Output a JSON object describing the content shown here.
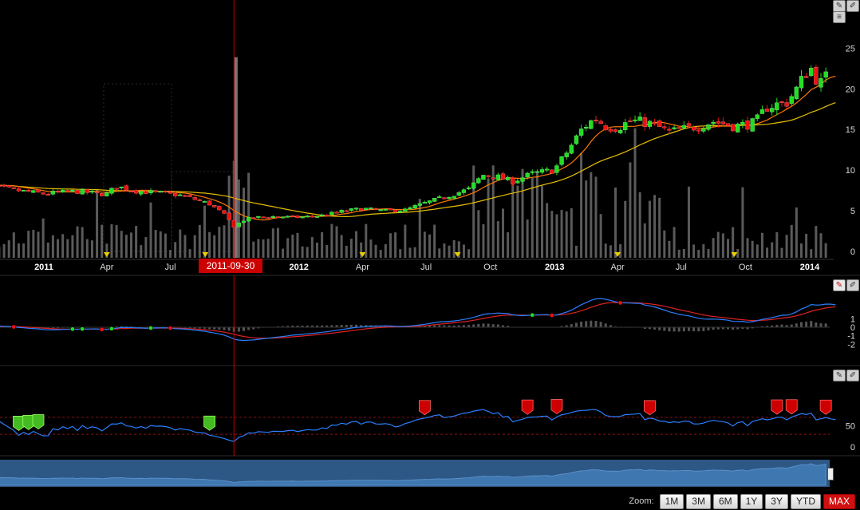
{
  "cursor": {
    "label": "2011-09-30"
  },
  "zoom": {
    "label": "Zoom:",
    "buttons": [
      "1M",
      "3M",
      "6M",
      "1Y",
      "3Y",
      "YTD",
      "MAX"
    ],
    "active": "MAX"
  },
  "colors": {
    "up": "#22dd22",
    "down": "#ee1111",
    "sma_fast": "#ff7a00",
    "sma_slow": "#e8c000",
    "macd": "#2a7fff",
    "signal": "#dd2222",
    "rsi": "#2a7fff",
    "volume": "#5a5a5a",
    "navigator": "#3a6ea5"
  },
  "icons": {
    "price_tools": [
      "eraser-icon",
      "pencil-icon",
      "menu-icon"
    ],
    "macd_tools": [
      "eraser-icon",
      "pencil-icon"
    ],
    "rsi_tools": [
      "eraser-icon",
      "pencil-icon"
    ]
  },
  "chart_data": {
    "type": "candlestick",
    "x_tick_labels": [
      {
        "label": "2011",
        "bold": true
      },
      {
        "label": "Apr",
        "bold": false
      },
      {
        "label": "Jul",
        "bold": false
      },
      {
        "label": "Oct",
        "bold": false
      },
      {
        "label": "2012",
        "bold": true
      },
      {
        "label": "Apr",
        "bold": false
      },
      {
        "label": "Jul",
        "bold": false
      },
      {
        "label": "Oct",
        "bold": false
      },
      {
        "label": "2013",
        "bold": true
      },
      {
        "label": "Apr",
        "bold": false
      },
      {
        "label": "Jul",
        "bold": false
      },
      {
        "label": "Oct",
        "bold": false
      },
      {
        "label": "2014",
        "bold": true
      }
    ],
    "price_panel": {
      "y_ticks": [
        0,
        5,
        10,
        15,
        20,
        25
      ],
      "ylim": [
        0,
        27
      ],
      "close_series": [
        [
          "2010-09-30",
          8.2
        ],
        [
          "2010-11-15",
          7.6
        ],
        [
          "2010-12-31",
          7.1
        ],
        [
          "2011-02-15",
          7.4
        ],
        [
          "2011-03-31",
          7.0
        ],
        [
          "2011-04-15",
          8.0
        ],
        [
          "2011-05-15",
          7.4
        ],
        [
          "2011-06-15",
          7.2
        ],
        [
          "2011-07-15",
          6.9
        ],
        [
          "2011-08-05",
          6.4
        ],
        [
          "2011-08-25",
          5.9
        ],
        [
          "2011-09-15",
          4.6
        ],
        [
          "2011-09-30",
          3.1
        ],
        [
          "2011-10-15",
          3.9
        ],
        [
          "2011-11-01",
          4.2
        ],
        [
          "2011-11-30",
          4.3
        ],
        [
          "2011-12-31",
          4.2
        ],
        [
          "2012-02-01",
          4.4
        ],
        [
          "2012-03-01",
          4.9
        ],
        [
          "2012-04-01",
          5.3
        ],
        [
          "2012-05-01",
          5.0
        ],
        [
          "2012-06-01",
          5.1
        ],
        [
          "2012-07-01",
          6.0
        ],
        [
          "2012-08-01",
          6.8
        ],
        [
          "2012-09-01",
          7.7
        ],
        [
          "2012-09-20",
          9.4
        ],
        [
          "2012-10-10",
          9.2
        ],
        [
          "2012-11-01",
          8.6
        ],
        [
          "2012-12-01",
          9.6
        ],
        [
          "2012-12-31",
          10.0
        ],
        [
          "2013-01-20",
          12.4
        ],
        [
          "2013-02-10",
          15.2
        ],
        [
          "2013-02-28",
          16.4
        ],
        [
          "2013-03-15",
          15.4
        ],
        [
          "2013-04-01",
          15.2
        ],
        [
          "2013-04-20",
          16.1
        ],
        [
          "2013-05-15",
          15.8
        ],
        [
          "2013-06-15",
          14.7
        ],
        [
          "2013-07-15",
          15.2
        ],
        [
          "2013-08-15",
          16.0
        ],
        [
          "2013-09-15",
          15.4
        ],
        [
          "2013-10-15",
          15.8
        ],
        [
          "2013-11-01",
          17.8
        ],
        [
          "2013-11-30",
          18.4
        ],
        [
          "2013-12-15",
          20.2
        ],
        [
          "2014-01-01",
          22.8
        ],
        [
          "2014-01-15",
          20.5
        ],
        [
          "2014-01-31",
          22.1
        ]
      ],
      "volume": {
        "ylim": [
          0,
          30
        ],
        "spike": {
          "date": "2011-10-03",
          "value": 26
        }
      }
    },
    "macd_panel": {
      "y_ticks": [
        1,
        0,
        -1,
        -2
      ],
      "ylim": [
        -2.6,
        2.0
      ]
    },
    "rsi_panel": {
      "y_ticks": [
        50,
        0
      ],
      "ylim": [
        0,
        90
      ],
      "levels": [
        70,
        30
      ]
    }
  }
}
